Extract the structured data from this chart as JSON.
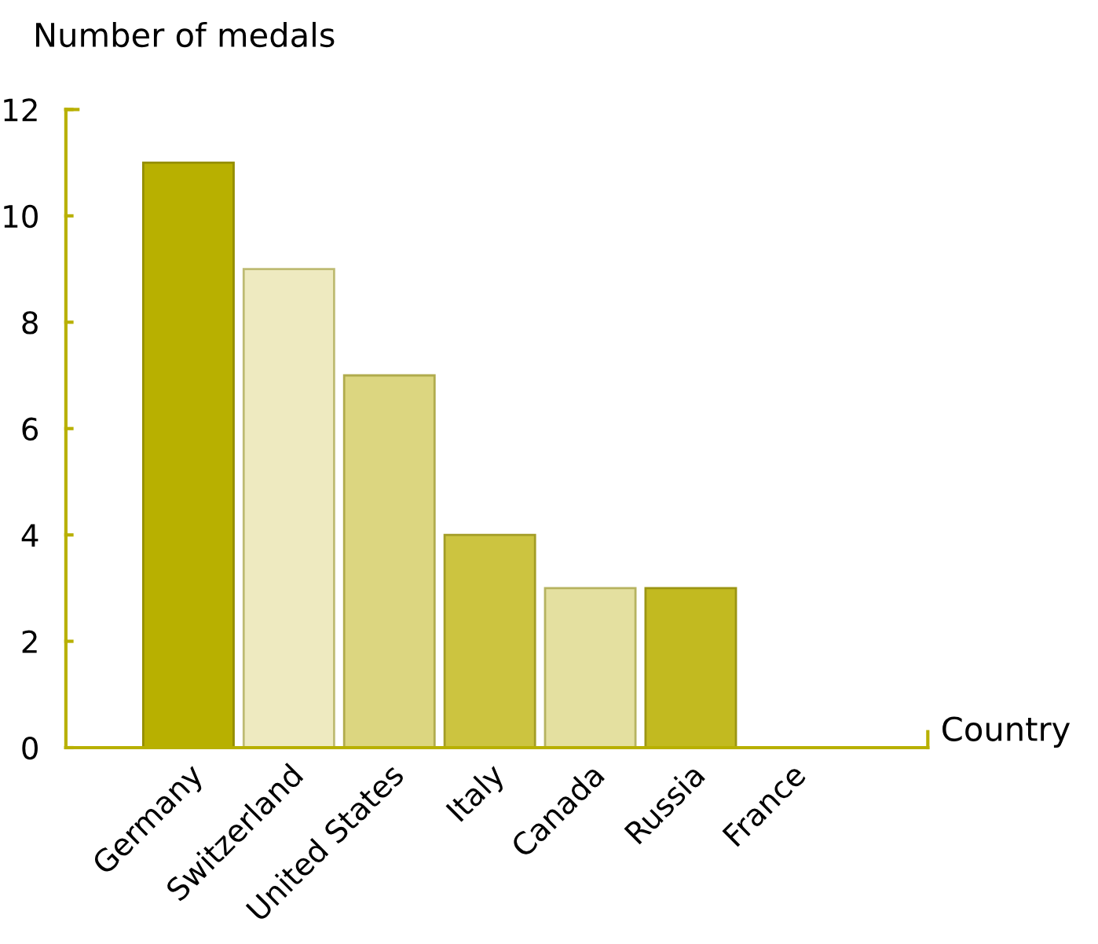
{
  "chart_data": {
    "type": "bar",
    "ylabel": "Number of medals",
    "xlabel": "Country",
    "categories": [
      "Germany",
      "Switzerland",
      "United States",
      "Italy",
      "Canada",
      "Russia",
      "France"
    ],
    "values": [
      11,
      9,
      7,
      4,
      3,
      3,
      0
    ],
    "colors": [
      "#b8b000",
      "#eeeac0",
      "#dcd680",
      "#ccc440",
      "#e4e0a0",
      "#c2ba20",
      "#b8b000"
    ],
    "ylim": [
      0,
      12
    ],
    "yticks": [
      0,
      2,
      4,
      6,
      8,
      10,
      12
    ],
    "grid": false,
    "legend": false
  }
}
